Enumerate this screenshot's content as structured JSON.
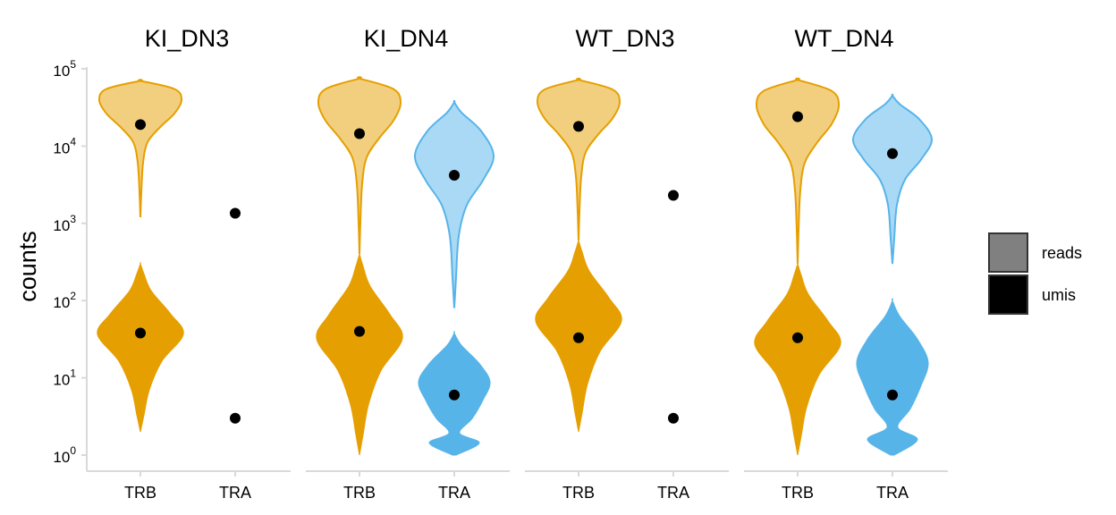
{
  "chart_data": {
    "type": "violin",
    "ylabel": "counts",
    "yscale": "log10",
    "ylim": [
      1,
      100000
    ],
    "y_ticks": [
      {
        "value": 1,
        "base": "10",
        "exp": "0"
      },
      {
        "value": 10,
        "base": "10",
        "exp": "1"
      },
      {
        "value": 100,
        "base": "10",
        "exp": "2"
      },
      {
        "value": 1000,
        "base": "10",
        "exp": "3"
      },
      {
        "value": 10000,
        "base": "10",
        "exp": "4"
      },
      {
        "value": 100000,
        "base": "10",
        "exp": "5"
      }
    ],
    "x_categories": [
      "TRB",
      "TRA"
    ],
    "legend": {
      "position": "right",
      "entries": [
        {
          "label": "reads",
          "color": "#808080"
        },
        {
          "label": "umis",
          "color": "#000000"
        }
      ]
    },
    "colors": {
      "TRB_umis": "#E69F00",
      "TRB_reads": "#F2CF7F",
      "TRB_outline": "#E69F00",
      "TRA_umis": "#56B4E9",
      "TRA_reads": "#A9D9F4",
      "TRA_outline": "#56B4E9",
      "point": "#000000",
      "axis": "#D9D9D9"
    },
    "panels": [
      {
        "title": "KI_DN3",
        "groups": [
          {
            "category": "TRB",
            "measure": "reads",
            "median": 19000,
            "range": [
              1200,
              70000
            ]
          },
          {
            "category": "TRB",
            "measure": "umis",
            "median": 38,
            "range": [
              2,
              300
            ]
          },
          {
            "category": "TRA",
            "measure": "reads",
            "median": 1350,
            "range": null
          },
          {
            "category": "TRA",
            "measure": "umis",
            "median": 3,
            "range": null
          }
        ]
      },
      {
        "title": "KI_DN4",
        "groups": [
          {
            "category": "TRB",
            "measure": "reads",
            "median": 14500,
            "range": [
              400,
              75000
            ]
          },
          {
            "category": "TRB",
            "measure": "umis",
            "median": 40,
            "range": [
              1,
              400
            ]
          },
          {
            "category": "TRA",
            "measure": "reads",
            "median": 4200,
            "range": [
              80,
              37000
            ]
          },
          {
            "category": "TRA",
            "measure": "umis",
            "median": 6,
            "range": [
              1,
              38
            ]
          }
        ]
      },
      {
        "title": "WT_DN3",
        "groups": [
          {
            "category": "TRB",
            "measure": "reads",
            "median": 18000,
            "range": [
              600,
              72000
            ]
          },
          {
            "category": "TRB",
            "measure": "umis",
            "median": 33,
            "range": [
              2,
              600
            ]
          },
          {
            "category": "TRA",
            "measure": "reads",
            "median": 2300,
            "range": null
          },
          {
            "category": "TRA",
            "measure": "umis",
            "median": 3,
            "range": null
          }
        ]
      },
      {
        "title": "WT_DN4",
        "groups": [
          {
            "category": "TRB",
            "measure": "reads",
            "median": 24000,
            "range": [
              300,
              72000
            ]
          },
          {
            "category": "TRB",
            "measure": "umis",
            "median": 33,
            "range": [
              1,
              300
            ]
          },
          {
            "category": "TRA",
            "measure": "reads",
            "median": 8000,
            "range": [
              300,
              45000
            ]
          },
          {
            "category": "TRA",
            "measure": "umis",
            "median": 6,
            "range": [
              1,
              100
            ]
          }
        ]
      }
    ]
  }
}
